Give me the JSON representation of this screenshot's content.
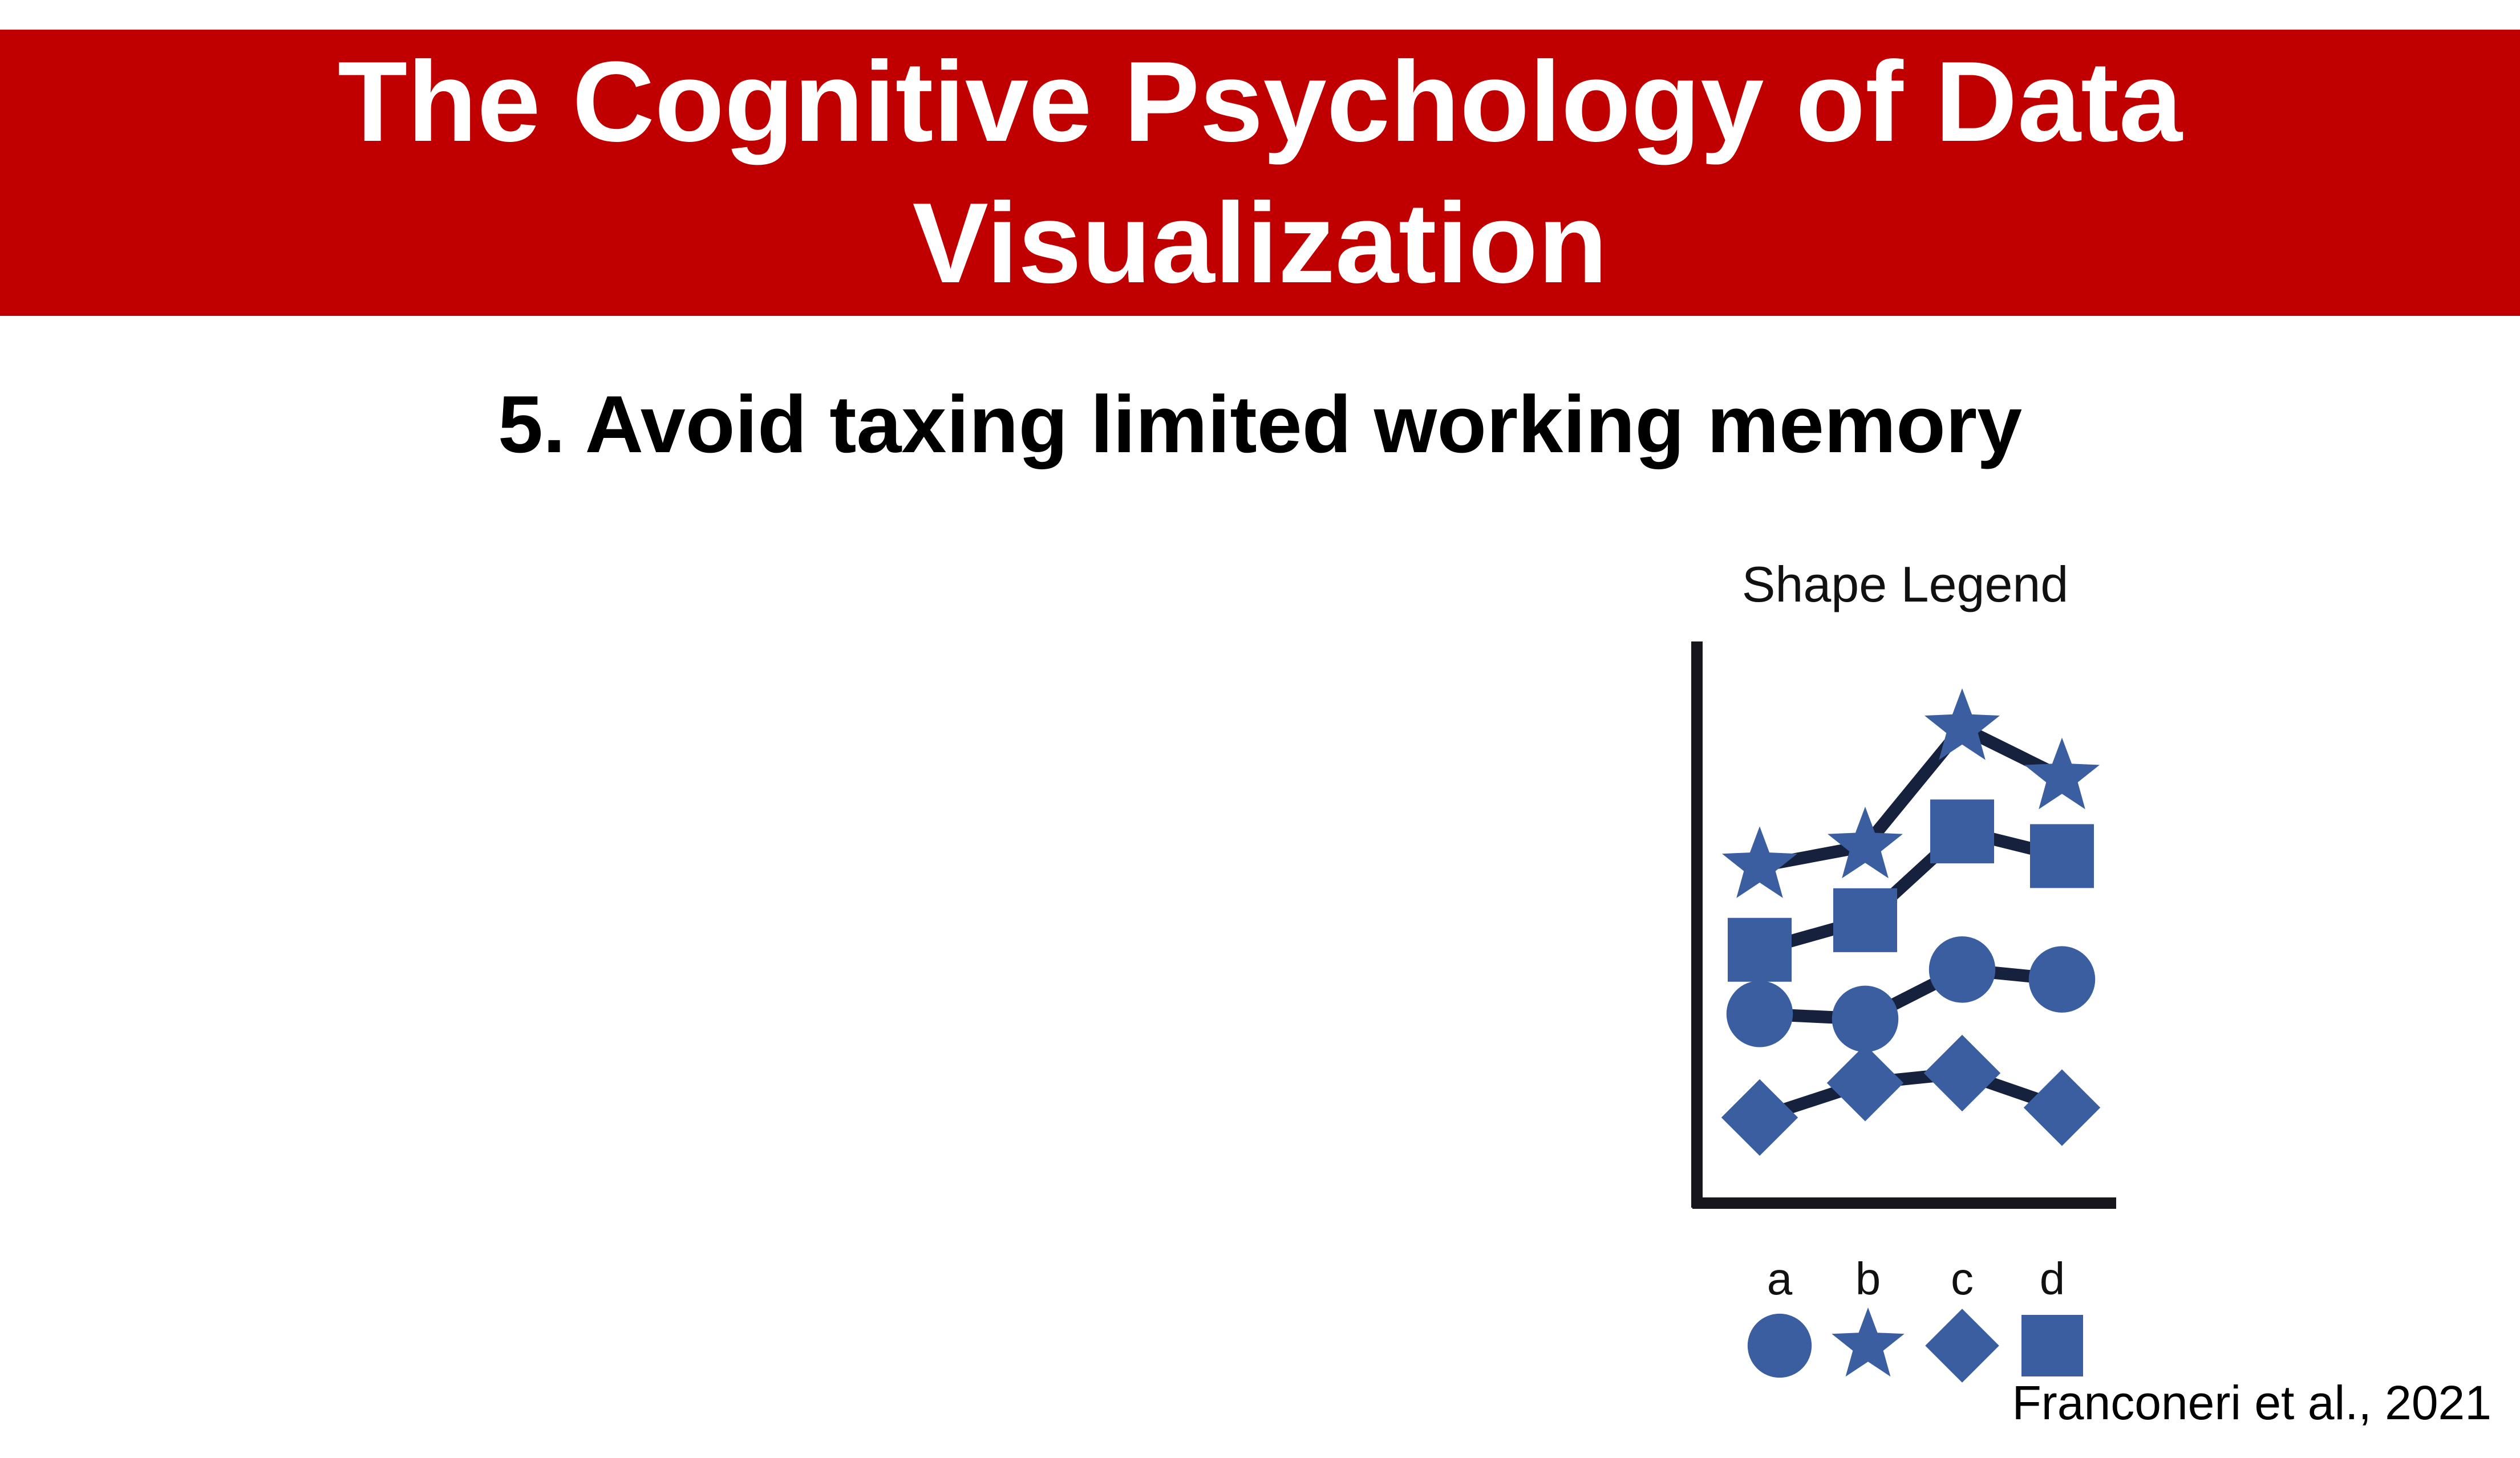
{
  "slide": {
    "title_line1": "The Cognitive Psychology of Data",
    "title_line2": "Visualization",
    "heading": "5. Avoid taxing limited working memory",
    "citation": "Franconeri et al., 2021"
  },
  "colors": {
    "title_bar": "#c00000",
    "marker": "#3a5ea0",
    "line": "#16213d",
    "axis": "#16161c"
  },
  "chart_data": {
    "type": "line",
    "title": "Shape Legend",
    "xlabel": "",
    "ylabel": "",
    "grid": false,
    "x": [
      1,
      2,
      3,
      4
    ],
    "ylim": [
      0,
      10
    ],
    "series": [
      {
        "marker": "star",
        "values": [
          6.2,
          6.6,
          9.0,
          8.0
        ]
      },
      {
        "marker": "square",
        "values": [
          4.5,
          5.1,
          6.9,
          6.4
        ]
      },
      {
        "marker": "circle",
        "values": [
          3.2,
          3.1,
          4.1,
          3.9
        ]
      },
      {
        "marker": "diamond",
        "values": [
          1.1,
          1.8,
          2.0,
          1.3
        ]
      }
    ],
    "legend": {
      "placement": "bottom",
      "items": [
        {
          "label": "a",
          "marker": "circle"
        },
        {
          "label": "b",
          "marker": "star"
        },
        {
          "label": "c",
          "marker": "diamond"
        },
        {
          "label": "d",
          "marker": "square"
        }
      ]
    }
  }
}
